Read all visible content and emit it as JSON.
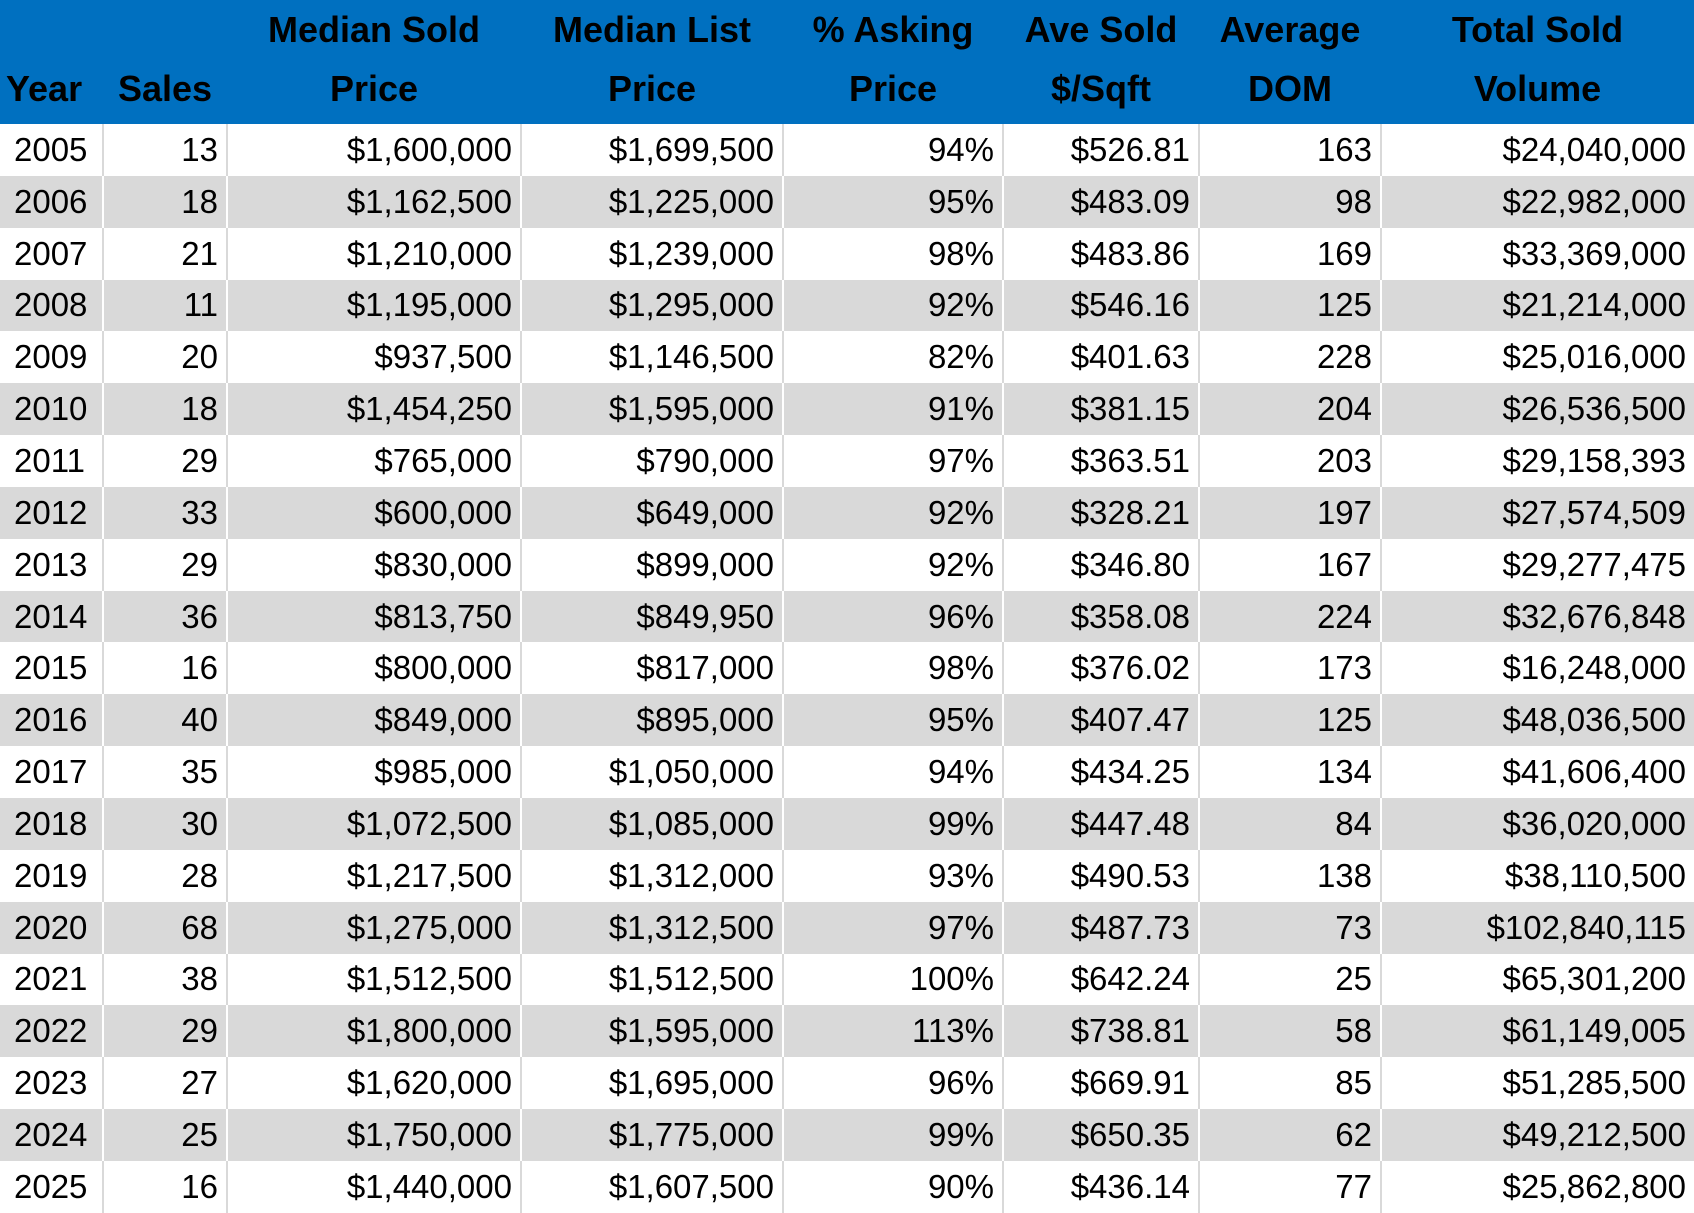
{
  "table": {
    "header": [
      {
        "lines": [
          "Year"
        ]
      },
      {
        "lines": [
          "Sales"
        ]
      },
      {
        "lines": [
          "Median Sold",
          "Price"
        ]
      },
      {
        "lines": [
          "Median List",
          "Price"
        ]
      },
      {
        "lines": [
          "% Asking",
          "Price"
        ]
      },
      {
        "lines": [
          "Ave Sold",
          "$/Sqft"
        ]
      },
      {
        "lines": [
          "Average",
          "DOM"
        ]
      },
      {
        "lines": [
          "Total Sold",
          "Volume"
        ]
      }
    ],
    "rows": [
      [
        "2005",
        "13",
        "$1,600,000",
        "$1,699,500",
        "94%",
        "$526.81",
        "163",
        "$24,040,000"
      ],
      [
        "2006",
        "18",
        "$1,162,500",
        "$1,225,000",
        "95%",
        "$483.09",
        "98",
        "$22,982,000"
      ],
      [
        "2007",
        "21",
        "$1,210,000",
        "$1,239,000",
        "98%",
        "$483.86",
        "169",
        "$33,369,000"
      ],
      [
        "2008",
        "11",
        "$1,195,000",
        "$1,295,000",
        "92%",
        "$546.16",
        "125",
        "$21,214,000"
      ],
      [
        "2009",
        "20",
        "$937,500",
        "$1,146,500",
        "82%",
        "$401.63",
        "228",
        "$25,016,000"
      ],
      [
        "2010",
        "18",
        "$1,454,250",
        "$1,595,000",
        "91%",
        "$381.15",
        "204",
        "$26,536,500"
      ],
      [
        "2011",
        "29",
        "$765,000",
        "$790,000",
        "97%",
        "$363.51",
        "203",
        "$29,158,393"
      ],
      [
        "2012",
        "33",
        "$600,000",
        "$649,000",
        "92%",
        "$328.21",
        "197",
        "$27,574,509"
      ],
      [
        "2013",
        "29",
        "$830,000",
        "$899,000",
        "92%",
        "$346.80",
        "167",
        "$29,277,475"
      ],
      [
        "2014",
        "36",
        "$813,750",
        "$849,950",
        "96%",
        "$358.08",
        "224",
        "$32,676,848"
      ],
      [
        "2015",
        "16",
        "$800,000",
        "$817,000",
        "98%",
        "$376.02",
        "173",
        "$16,248,000"
      ],
      [
        "2016",
        "40",
        "$849,000",
        "$895,000",
        "95%",
        "$407.47",
        "125",
        "$48,036,500"
      ],
      [
        "2017",
        "35",
        "$985,000",
        "$1,050,000",
        "94%",
        "$434.25",
        "134",
        "$41,606,400"
      ],
      [
        "2018",
        "30",
        "$1,072,500",
        "$1,085,000",
        "99%",
        "$447.48",
        "84",
        "$36,020,000"
      ],
      [
        "2019",
        "28",
        "$1,217,500",
        "$1,312,000",
        "93%",
        "$490.53",
        "138",
        "$38,110,500"
      ],
      [
        "2020",
        "68",
        "$1,275,000",
        "$1,312,500",
        "97%",
        "$487.73",
        "73",
        "$102,840,115"
      ],
      [
        "2021",
        "38",
        "$1,512,500",
        "$1,512,500",
        "100%",
        "$642.24",
        "25",
        "$65,301,200"
      ],
      [
        "2022",
        "29",
        "$1,800,000",
        "$1,595,000",
        "113%",
        "$738.81",
        "58",
        "$61,149,005"
      ],
      [
        "2023",
        "27",
        "$1,620,000",
        "$1,695,000",
        "96%",
        "$669.91",
        "85",
        "$51,285,500"
      ],
      [
        "2024",
        "25",
        "$1,750,000",
        "$1,775,000",
        "99%",
        "$650.35",
        "62",
        "$49,212,500"
      ],
      [
        "2025",
        "16",
        "$1,440,000",
        "$1,607,500",
        "90%",
        "$436.14",
        "77",
        "$25,862,800"
      ]
    ]
  }
}
